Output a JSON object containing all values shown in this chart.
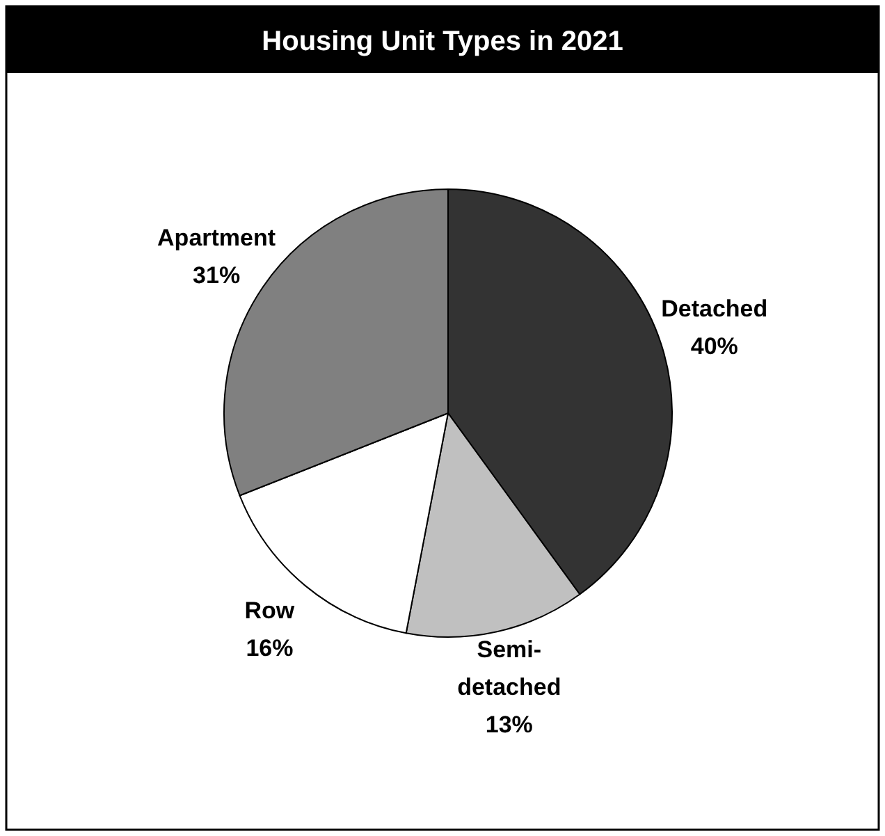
{
  "chart_data": {
    "type": "pie",
    "title": "Housing Unit Types in 2021",
    "categories": [
      "Detached",
      "Semi-detached",
      "Row",
      "Apartment"
    ],
    "values": [
      40,
      13,
      16,
      31
    ],
    "colors": [
      "#333333",
      "#c0c0c0",
      "#ffffff",
      "#808080"
    ],
    "value_labels": [
      "40%",
      "13%",
      "16%",
      "31%"
    ]
  }
}
